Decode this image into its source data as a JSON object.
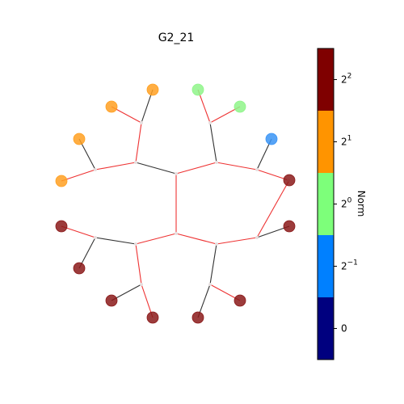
{
  "figure": {
    "title": "G2_21"
  },
  "colorbar": {
    "label": "Norm",
    "scale": "log2",
    "segments": [
      {
        "level": 0,
        "color": "#00007f"
      },
      {
        "level": 1,
        "color": "#0080ff"
      },
      {
        "level": 2,
        "color": "#7dff7a"
      },
      {
        "level": 3,
        "color": "#ff9400"
      },
      {
        "level": 4,
        "color": "#7f0000"
      }
    ],
    "ticks": [
      {
        "base": "0",
        "exp": ""
      },
      {
        "base": "2",
        "exp": "−1"
      },
      {
        "base": "2",
        "exp": "0"
      },
      {
        "base": "2",
        "exp": "1"
      },
      {
        "base": "2",
        "exp": "2"
      }
    ]
  },
  "graph": {
    "edge_colors": {
      "black": "#333333",
      "red": "#ee3333"
    },
    "junction_color": "#e6dede",
    "node_colors": {
      "dark-red": "#8b1a1a",
      "orange": "#ffa022",
      "green": "#8ff58a",
      "blue": "#3a94f5"
    },
    "nodes": [
      {
        "id": "j0",
        "kind": "junction"
      },
      {
        "id": "j1",
        "kind": "junction"
      },
      {
        "id": "j2",
        "kind": "junction"
      },
      {
        "id": "j3",
        "kind": "junction"
      },
      {
        "id": "j4",
        "kind": "junction"
      },
      {
        "id": "j5",
        "kind": "junction"
      },
      {
        "id": "j6",
        "kind": "junction"
      },
      {
        "id": "j7",
        "kind": "junction"
      },
      {
        "id": "j8",
        "kind": "junction"
      },
      {
        "id": "j9",
        "kind": "junction"
      },
      {
        "id": "j10",
        "kind": "junction"
      },
      {
        "id": "j11",
        "kind": "junction"
      },
      {
        "id": "j12",
        "kind": "junction"
      },
      {
        "id": "j13",
        "kind": "junction"
      },
      {
        "id": "j14",
        "kind": "junction"
      },
      {
        "id": "l0",
        "kind": "leaf",
        "color": "orange"
      },
      {
        "id": "l1",
        "kind": "leaf",
        "color": "orange"
      },
      {
        "id": "l2",
        "kind": "leaf",
        "color": "orange"
      },
      {
        "id": "l3",
        "kind": "leaf",
        "color": "orange"
      },
      {
        "id": "l4",
        "kind": "leaf",
        "color": "green"
      },
      {
        "id": "l5",
        "kind": "leaf",
        "color": "green"
      },
      {
        "id": "l6",
        "kind": "leaf",
        "color": "blue"
      },
      {
        "id": "l7",
        "kind": "leaf",
        "color": "dark-red"
      },
      {
        "id": "l8",
        "kind": "leaf",
        "color": "dark-red"
      },
      {
        "id": "l9",
        "kind": "leaf",
        "color": "dark-red"
      },
      {
        "id": "l10",
        "kind": "leaf",
        "color": "dark-red"
      },
      {
        "id": "l11",
        "kind": "leaf",
        "color": "dark-red"
      },
      {
        "id": "l12",
        "kind": "leaf",
        "color": "dark-red"
      },
      {
        "id": "l13",
        "kind": "leaf",
        "color": "dark-red"
      },
      {
        "id": "l14",
        "kind": "leaf",
        "color": "dark-red"
      }
    ],
    "edges": [
      {
        "from": "j1",
        "to": "j0",
        "color": "black"
      },
      {
        "from": "j0",
        "to": "j2",
        "color": "red"
      },
      {
        "from": "j1",
        "to": "j3",
        "color": "black"
      },
      {
        "from": "j1",
        "to": "j4",
        "color": "red"
      },
      {
        "from": "j3",
        "to": "j7",
        "color": "red"
      },
      {
        "from": "j3",
        "to": "j8",
        "color": "black"
      },
      {
        "from": "j4",
        "to": "j9",
        "color": "red"
      },
      {
        "from": "j4",
        "to": "j10",
        "color": "black"
      },
      {
        "from": "j2",
        "to": "j5",
        "color": "red"
      },
      {
        "from": "j2",
        "to": "j6",
        "color": "red"
      },
      {
        "from": "j5",
        "to": "j11",
        "color": "black"
      },
      {
        "from": "j5",
        "to": "j12",
        "color": "red"
      },
      {
        "from": "j6",
        "to": "j13",
        "color": "black"
      },
      {
        "from": "j6",
        "to": "j14",
        "color": "red"
      },
      {
        "from": "j7",
        "to": "l0",
        "color": "red"
      },
      {
        "from": "j7",
        "to": "l1",
        "color": "black"
      },
      {
        "from": "j8",
        "to": "l2",
        "color": "red"
      },
      {
        "from": "j8",
        "to": "l3",
        "color": "black"
      },
      {
        "from": "j9",
        "to": "l4",
        "color": "red"
      },
      {
        "from": "j9",
        "to": "l5",
        "color": "black"
      },
      {
        "from": "j10",
        "to": "l6",
        "color": "black"
      },
      {
        "from": "j11",
        "to": "l7",
        "color": "black"
      },
      {
        "from": "j11",
        "to": "l8",
        "color": "red"
      },
      {
        "from": "j12",
        "to": "l9",
        "color": "black"
      },
      {
        "from": "j12",
        "to": "l10",
        "color": "red"
      },
      {
        "from": "j13",
        "to": "l11",
        "color": "black"
      },
      {
        "from": "j13",
        "to": "l12",
        "color": "red"
      },
      {
        "from": "j14",
        "to": "l13",
        "color": "black"
      },
      {
        "from": "j14",
        "to": "l14",
        "color": "red"
      }
    ]
  }
}
